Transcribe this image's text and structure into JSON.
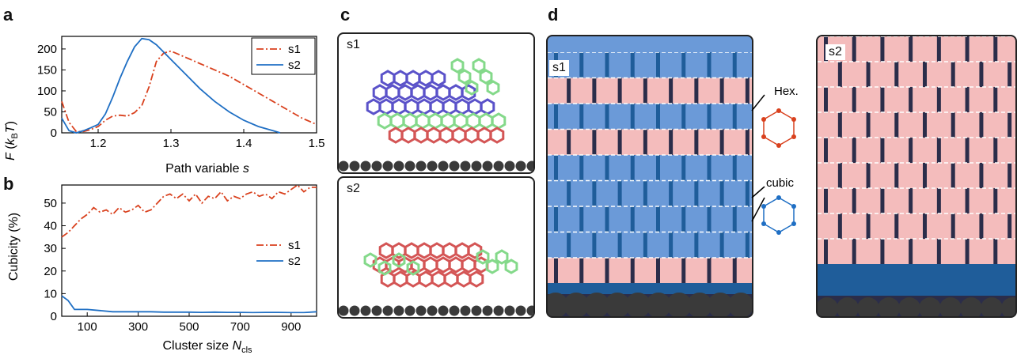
{
  "panels": {
    "a": "a",
    "b": "b",
    "c": "c",
    "d": "d"
  },
  "chart_data": [
    {
      "type": "line",
      "ylabel_main": "F",
      "ylabel_open": " (",
      "ylabel_k": "k",
      "ylabel_sub": "B",
      "ylabel_t": "T",
      "ylabel_close": ")",
      "xlabel": "Path variable ",
      "xlabel_var": "s",
      "xlim": [
        1.15,
        1.5
      ],
      "ylim": [
        0,
        230
      ],
      "xticks": [
        1.2,
        1.3,
        1.4,
        1.5
      ],
      "yticks": [
        0,
        50,
        100,
        150,
        200
      ],
      "legend_position": "top-right",
      "series": [
        {
          "name": "s1",
          "color": "#d9411e",
          "dash": true,
          "x": [
            1.15,
            1.16,
            1.17,
            1.18,
            1.19,
            1.2,
            1.21,
            1.22,
            1.23,
            1.24,
            1.25,
            1.26,
            1.27,
            1.28,
            1.29,
            1.3,
            1.32,
            1.34,
            1.36,
            1.38,
            1.4,
            1.42,
            1.44,
            1.46,
            1.48,
            1.5
          ],
          "y": [
            75,
            25,
            3,
            3,
            8,
            15,
            30,
            40,
            42,
            40,
            48,
            65,
            110,
            170,
            190,
            195,
            180,
            165,
            150,
            135,
            115,
            95,
            75,
            55,
            35,
            20
          ]
        },
        {
          "name": "s2",
          "color": "#1f6fc4",
          "dash": false,
          "x": [
            1.15,
            1.16,
            1.17,
            1.18,
            1.19,
            1.2,
            1.21,
            1.22,
            1.23,
            1.24,
            1.25,
            1.26,
            1.27,
            1.28,
            1.3,
            1.32,
            1.34,
            1.36,
            1.38,
            1.4,
            1.42,
            1.44,
            1.45
          ],
          "y": [
            35,
            5,
            0,
            5,
            12,
            20,
            45,
            85,
            130,
            170,
            205,
            225,
            222,
            210,
            175,
            140,
            105,
            75,
            50,
            30,
            15,
            5,
            0
          ]
        }
      ]
    },
    {
      "type": "line",
      "ylabel": "Cubicity (%)",
      "xlabel": "Cluster size ",
      "xlabel_var": "N",
      "xlabel_sub": "cls",
      "xlim": [
        0,
        1000
      ],
      "ylim": [
        0,
        58
      ],
      "xticks": [
        100,
        300,
        500,
        700,
        900
      ],
      "yticks": [
        0,
        10,
        20,
        30,
        40,
        50
      ],
      "legend_position": "center-right",
      "series": [
        {
          "name": "s1",
          "color": "#d9411e",
          "dash": true,
          "x": [
            0,
            25,
            50,
            75,
            100,
            125,
            150,
            175,
            200,
            225,
            250,
            275,
            300,
            325,
            350,
            375,
            400,
            425,
            450,
            475,
            500,
            525,
            550,
            575,
            600,
            625,
            650,
            675,
            700,
            725,
            750,
            775,
            800,
            825,
            850,
            875,
            900,
            925,
            950,
            975,
            1000
          ],
          "y": [
            35,
            37,
            40,
            43,
            45,
            48,
            46,
            47,
            45,
            48,
            46,
            47,
            49,
            46,
            47,
            50,
            53,
            54,
            52,
            54,
            51,
            54,
            50,
            53,
            52,
            55,
            51,
            53,
            52,
            54,
            55,
            53,
            54,
            52,
            55,
            54,
            56,
            58,
            55,
            57,
            57
          ]
        },
        {
          "name": "s2",
          "color": "#1f6fc4",
          "dash": false,
          "x": [
            0,
            25,
            50,
            75,
            100,
            150,
            200,
            250,
            300,
            350,
            400,
            450,
            500,
            550,
            600,
            650,
            700,
            750,
            800,
            850,
            900,
            950,
            1000
          ],
          "y": [
            9,
            7,
            3,
            3,
            3,
            2.5,
            2,
            2,
            2,
            2,
            1.8,
            1.8,
            1.8,
            1.7,
            1.8,
            1.7,
            1.7,
            1.6,
            1.7,
            1.7,
            1.6,
            1.6,
            2
          ]
        }
      ]
    }
  ],
  "panel_c": {
    "top_label": "s1",
    "bottom_label": "s2"
  },
  "panel_d": {
    "left_label": "s1",
    "right_label": "s2",
    "hex_label": "Hex.",
    "cubic_label": "cubic"
  },
  "colors": {
    "ice_blue": "#1f5d9a",
    "ice_light": "#6b9ad8",
    "pink": "#f4bcbc",
    "dark": "#2b2d4a",
    "substrate": "#3a3a3a",
    "s1": "#d9411e",
    "s2": "#1f6fc4",
    "purple": "#5a52c9",
    "green": "#84d98a",
    "red": "#d45555"
  }
}
